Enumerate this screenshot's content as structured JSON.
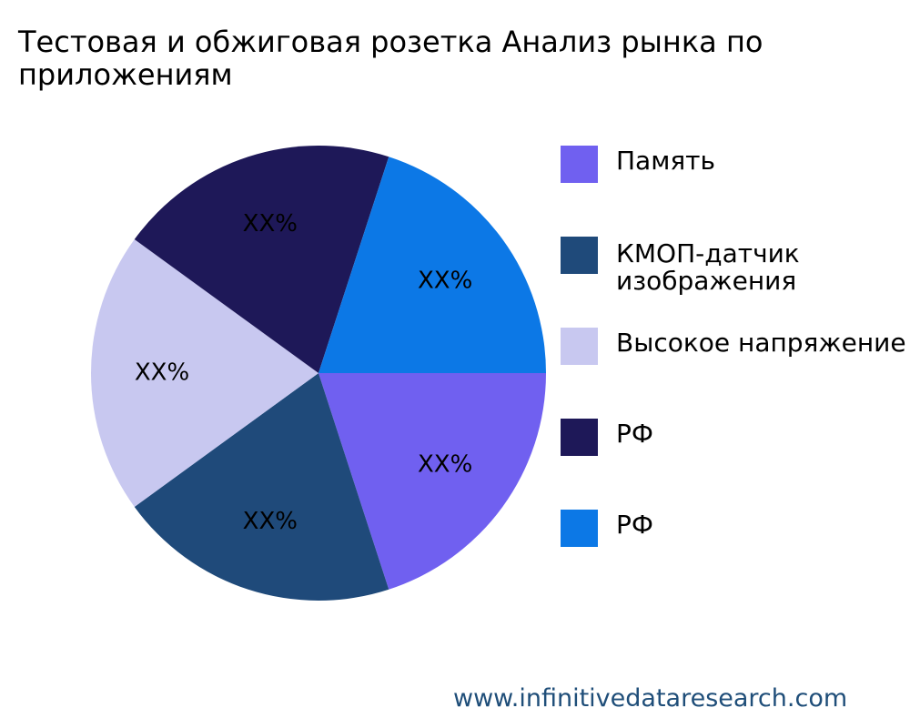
{
  "chart_data": {
    "type": "pie",
    "title": "Тестовая и обжиговая розетка Анализ рынка по приложениям",
    "slices": [
      {
        "name": "Память",
        "value": 20,
        "label": "XX%",
        "color": "#7060f0"
      },
      {
        "name": "КМОП-датчик изображения",
        "value": 20,
        "label": "XX%",
        "color": "#1f4a7a"
      },
      {
        "name": "Высокое напряжение",
        "value": 20,
        "label": "XX%",
        "color": "#c8c8f0"
      },
      {
        "name": "РФ",
        "value": 20,
        "label": "XX%",
        "color": "#1e1858"
      },
      {
        "name": "РФ",
        "value": 20,
        "label": "XX%",
        "color": "#0c78e6"
      }
    ],
    "legend_position": "right"
  },
  "legend": [
    {
      "label": "Память",
      "color": "#7060f0"
    },
    {
      "label": "КМОП-датчик\nизображения",
      "color": "#1f4a7a"
    },
    {
      "label": "Высокое напряжение",
      "color": "#c8c8f0"
    },
    {
      "label": "РФ",
      "color": "#1e1858"
    },
    {
      "label": "РФ",
      "color": "#0c78e6"
    }
  ],
  "source": "www.infinitivedataresearch.com"
}
